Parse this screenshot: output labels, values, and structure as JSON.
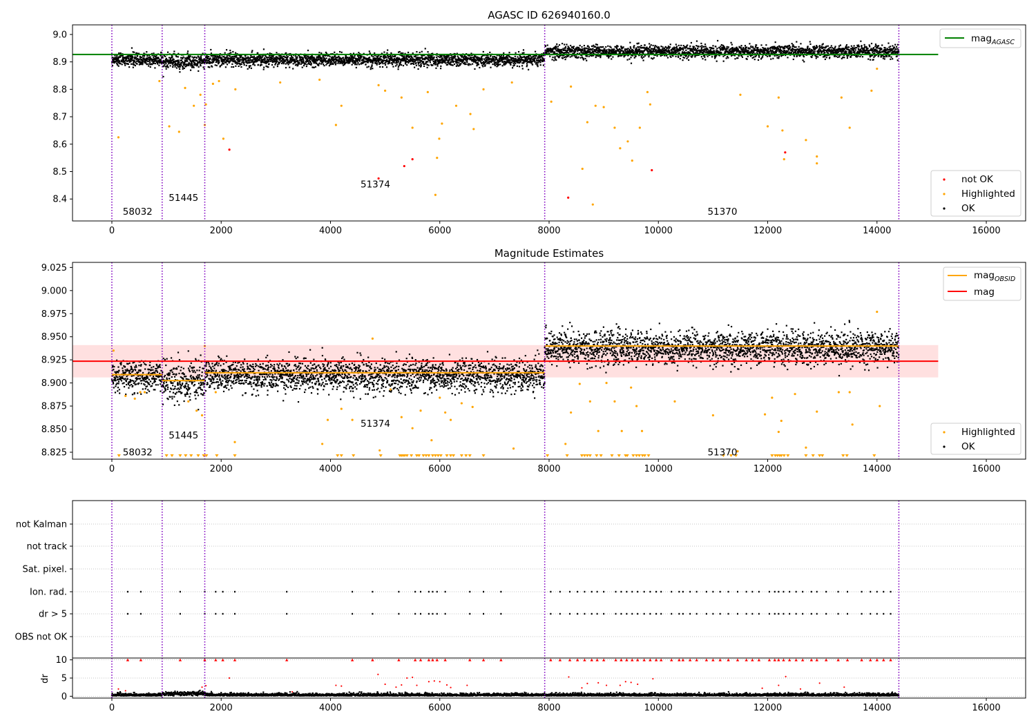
{
  "chart_data": [
    {
      "type": "scatter",
      "title": "AGASC ID 626940160.0",
      "xlabel": "",
      "ylabel": "",
      "xlim": [
        -720,
        16720
      ],
      "ylim": [
        8.32,
        9.035
      ],
      "xticks": [
        0,
        2000,
        4000,
        6000,
        8000,
        10000,
        12000,
        14000,
        16000
      ],
      "yticks": [
        8.4,
        8.5,
        8.6,
        8.7,
        8.8,
        8.9,
        9.0
      ],
      "vlines": [
        0,
        920,
        1700,
        7920,
        14400
      ],
      "obsid_labels": [
        {
          "text": "58032",
          "x": 200,
          "y": 8.355
        },
        {
          "text": "51445",
          "x": 1040,
          "y": 8.405
        },
        {
          "text": "51374",
          "x": 4550,
          "y": 8.455
        },
        {
          "text": "51370",
          "x": 10900,
          "y": 8.355
        }
      ],
      "mag_agasc": {
        "value": 8.927,
        "xrange": [
          -720,
          15120
        ]
      },
      "ok_bands": [
        {
          "x0": 0,
          "x1": 920,
          "center": 8.908,
          "spread": 0.012
        },
        {
          "x0": 920,
          "x1": 1700,
          "center": 8.901,
          "spread": 0.014
        },
        {
          "x0": 1700,
          "x1": 7920,
          "center": 8.908,
          "spread": 0.012
        },
        {
          "x0": 7920,
          "x1": 14400,
          "center": 8.938,
          "spread": 0.012
        }
      ],
      "highlighted_points": [
        [
          120,
          8.625
        ],
        [
          870,
          8.83
        ],
        [
          1050,
          8.665
        ],
        [
          1230,
          8.645
        ],
        [
          1340,
          8.805
        ],
        [
          1500,
          8.74
        ],
        [
          1620,
          8.78
        ],
        [
          1700,
          8.67
        ],
        [
          1720,
          8.745
        ],
        [
          1850,
          8.82
        ],
        [
          1960,
          8.83
        ],
        [
          2040,
          8.62
        ],
        [
          2260,
          8.8
        ],
        [
          3080,
          8.825
        ],
        [
          3800,
          8.835
        ],
        [
          4100,
          8.67
        ],
        [
          4200,
          8.74
        ],
        [
          4880,
          8.815
        ],
        [
          5000,
          8.795
        ],
        [
          5300,
          8.77
        ],
        [
          5500,
          8.66
        ],
        [
          5780,
          8.79
        ],
        [
          5950,
          8.55
        ],
        [
          5990,
          8.62
        ],
        [
          6040,
          8.675
        ],
        [
          6300,
          8.74
        ],
        [
          6560,
          8.71
        ],
        [
          6620,
          8.655
        ],
        [
          6800,
          8.8
        ],
        [
          7320,
          8.825
        ],
        [
          5920,
          8.415
        ],
        [
          8040,
          8.755
        ],
        [
          8400,
          8.81
        ],
        [
          8610,
          8.51
        ],
        [
          8700,
          8.68
        ],
        [
          8850,
          8.74
        ],
        [
          8800,
          8.38
        ],
        [
          9000,
          8.735
        ],
        [
          9200,
          8.66
        ],
        [
          9300,
          8.585
        ],
        [
          9440,
          8.61
        ],
        [
          9520,
          8.54
        ],
        [
          9660,
          8.66
        ],
        [
          9800,
          8.79
        ],
        [
          9850,
          8.745
        ],
        [
          11500,
          8.78
        ],
        [
          12000,
          8.665
        ],
        [
          12200,
          8.77
        ],
        [
          12300,
          8.545
        ],
        [
          12270,
          8.65
        ],
        [
          12700,
          8.615
        ],
        [
          12900,
          8.53
        ],
        [
          12900,
          8.555
        ],
        [
          13350,
          8.77
        ],
        [
          13500,
          8.66
        ],
        [
          13900,
          8.795
        ],
        [
          14000,
          8.875
        ]
      ],
      "not_ok_points": [
        [
          2150,
          8.58
        ],
        [
          4880,
          8.475
        ],
        [
          5350,
          8.52
        ],
        [
          5500,
          8.545
        ],
        [
          8350,
          8.405
        ],
        [
          9880,
          8.505
        ],
        [
          12320,
          8.57
        ]
      ],
      "legend_lines": [
        {
          "label": "mag",
          "subscript": "AGASC",
          "color": "#008000"
        }
      ],
      "legend_points": [
        {
          "label": "not OK",
          "color": "#ff0000"
        },
        {
          "label": "Highlighted",
          "color": "#ffa500"
        },
        {
          "label": "OK",
          "color": "#000000"
        }
      ]
    },
    {
      "type": "scatter",
      "title": "Magnitude Estimates",
      "xlabel": "",
      "ylabel": "",
      "xlim": [
        -720,
        16720
      ],
      "ylim": [
        8.8175,
        9.0305
      ],
      "xticks": [
        0,
        2000,
        4000,
        6000,
        8000,
        10000,
        12000,
        14000,
        16000
      ],
      "yticks": [
        8.825,
        8.85,
        8.875,
        8.9,
        8.925,
        8.95,
        8.975,
        9.0,
        9.025
      ],
      "vlines": [
        0,
        920,
        1700,
        7920,
        14400
      ],
      "obsid_labels": [
        {
          "text": "58032",
          "x": 200,
          "y": 8.8255
        },
        {
          "text": "51445",
          "x": 1040,
          "y": 8.8435
        },
        {
          "text": "51374",
          "x": 4550,
          "y": 8.8565
        },
        {
          "text": "51370",
          "x": 10900,
          "y": 8.8255
        }
      ],
      "mag": {
        "value": 8.9235,
        "band": [
          8.906,
          8.941
        ],
        "xrange": [
          -720,
          15120
        ]
      },
      "mag_obsid": [
        {
          "x0": 0,
          "x1": 920,
          "value": 8.909
        },
        {
          "x0": 920,
          "x1": 1700,
          "value": 8.9025
        },
        {
          "x0": 1700,
          "x1": 7920,
          "value": 8.911
        },
        {
          "x0": 7920,
          "x1": 14400,
          "value": 8.94
        }
      ],
      "ok_bands": [
        {
          "x0": 0,
          "x1": 920,
          "center": 8.908,
          "spread": 0.008
        },
        {
          "x0": 920,
          "x1": 1700,
          "center": 8.901,
          "spread": 0.011
        },
        {
          "x0": 1700,
          "x1": 7920,
          "center": 8.908,
          "spread": 0.009
        },
        {
          "x0": 7920,
          "x1": 14400,
          "center": 8.938,
          "spread": 0.009
        }
      ],
      "highlighted_points": [
        [
          30,
          8.935
        ],
        [
          250,
          8.886
        ],
        [
          420,
          8.883
        ],
        [
          520,
          8.89
        ],
        [
          600,
          8.89
        ],
        [
          1400,
          8.88
        ],
        [
          1550,
          8.87
        ],
        [
          1650,
          8.865
        ],
        [
          1700,
          8.94
        ],
        [
          1900,
          8.89
        ],
        [
          2250,
          8.836
        ],
        [
          3950,
          8.86
        ],
        [
          3850,
          8.834
        ],
        [
          4200,
          8.872
        ],
        [
          4400,
          8.86
        ],
        [
          4770,
          8.948
        ],
        [
          4900,
          8.827
        ],
        [
          5100,
          8.893
        ],
        [
          5300,
          8.863
        ],
        [
          5500,
          8.851
        ],
        [
          5650,
          8.87
        ],
        [
          5850,
          8.838
        ],
        [
          6000,
          8.884
        ],
        [
          6100,
          8.868
        ],
        [
          6200,
          8.86
        ],
        [
          6400,
          8.878
        ],
        [
          6600,
          8.874
        ],
        [
          7350,
          8.829
        ],
        [
          8300,
          8.834
        ],
        [
          8400,
          8.868
        ],
        [
          8560,
          8.899
        ],
        [
          8750,
          8.88
        ],
        [
          8900,
          8.848
        ],
        [
          9050,
          8.9
        ],
        [
          9200,
          8.88
        ],
        [
          9330,
          8.848
        ],
        [
          9500,
          8.895
        ],
        [
          9600,
          8.875
        ],
        [
          9700,
          8.848
        ],
        [
          10300,
          8.88
        ],
        [
          11000,
          8.865
        ],
        [
          11450,
          8.826
        ],
        [
          11950,
          8.866
        ],
        [
          12080,
          8.884
        ],
        [
          12200,
          8.847
        ],
        [
          12250,
          8.859
        ],
        [
          12500,
          8.888
        ],
        [
          12700,
          8.83
        ],
        [
          12900,
          8.869
        ],
        [
          13300,
          8.89
        ],
        [
          13500,
          8.89
        ],
        [
          13550,
          8.855
        ],
        [
          14050,
          8.875
        ],
        [
          14000,
          8.977
        ]
      ],
      "clipped_highlighted_x": [
        130,
        1000,
        1100,
        1250,
        1350,
        1450,
        1580,
        1680,
        1730,
        1920,
        2250,
        4130,
        4200,
        4420,
        4920,
        5270,
        5300,
        5330,
        5360,
        5400,
        5480,
        5580,
        5620,
        5700,
        5750,
        5800,
        5870,
        5920,
        5970,
        6020,
        6130,
        6200,
        6250,
        6400,
        6480,
        6550,
        6800,
        7970,
        8330,
        8600,
        8650,
        8700,
        8750,
        8870,
        8950,
        9150,
        9280,
        9400,
        9430,
        9540,
        9600,
        9650,
        9710,
        9750,
        9820,
        11190,
        11330,
        11420,
        12080,
        12140,
        12180,
        12220,
        12250,
        12300,
        12370,
        12700,
        12830,
        12950,
        13000,
        13380,
        13450,
        13950
      ],
      "legend_lines": [
        {
          "label": "mag",
          "subscript": "OBSID",
          "color": "#ffa500"
        },
        {
          "label": "mag",
          "subscript": "",
          "color": "#ff0000"
        }
      ],
      "legend_points": [
        {
          "label": "Highlighted",
          "color": "#ffa500"
        },
        {
          "label": "OK",
          "color": "#000000"
        }
      ]
    },
    {
      "type": "scatter",
      "title": "",
      "xlabel": "",
      "ylabel": "",
      "xlim": [
        -720,
        16720
      ],
      "categories": [
        "not Kalman",
        "not track",
        "Sat. pixel.",
        "Ion. rad.",
        "dr > 5",
        "OBS not OK"
      ],
      "flag_x": [
        290,
        530,
        1250,
        1700,
        1900,
        2030,
        2250,
        3200,
        4400,
        4770,
        5250,
        5550,
        5650,
        5800,
        5870,
        5950,
        6100,
        6550,
        6800,
        7120,
        8030,
        8200,
        8380,
        8520,
        8650,
        8780,
        8880,
        9000,
        9220,
        9320,
        9420,
        9520,
        9620,
        9740,
        9850,
        9960,
        10050,
        10240,
        10380,
        10450,
        10580,
        10700,
        10880,
        11000,
        11130,
        11280,
        11450,
        11610,
        11720,
        11840,
        12030,
        12130,
        12200,
        12290,
        12400,
        12520,
        12640,
        12800,
        12900,
        13070,
        13290,
        13460,
        13720,
        13880,
        14000,
        14120,
        14250
      ],
      "vlines": [
        0,
        920,
        1700,
        7920,
        14400
      ]
    },
    {
      "type": "scatter",
      "title": "",
      "xlabel": "",
      "ylabel": "dr",
      "xlim": [
        -720,
        16720
      ],
      "ylim": [
        -0.5,
        10.5
      ],
      "yticks": [
        0,
        5,
        10
      ],
      "ytick_labels": [
        "0",
        "5",
        "10"
      ],
      "xticks": [
        0,
        2000,
        4000,
        6000,
        8000,
        10000,
        12000,
        14000,
        16000
      ],
      "vlines": [
        0,
        920,
        1700,
        7920,
        14400
      ],
      "outlier_points": [
        [
          120,
          2.0
        ],
        [
          250,
          1.5
        ],
        [
          1650,
          2.5
        ],
        [
          1720,
          2.9
        ],
        [
          2150,
          5.0
        ],
        [
          3300,
          1.2
        ],
        [
          4100,
          3.0
        ],
        [
          4200,
          2.8
        ],
        [
          4870,
          6.0
        ],
        [
          5000,
          3.3
        ],
        [
          5200,
          2.5
        ],
        [
          5300,
          3.1
        ],
        [
          5400,
          5.0
        ],
        [
          5500,
          5.2
        ],
        [
          5580,
          3.0
        ],
        [
          5800,
          4.0
        ],
        [
          5900,
          4.2
        ],
        [
          6000,
          4.0
        ],
        [
          6130,
          3.1
        ],
        [
          6200,
          2.4
        ],
        [
          6500,
          3.0
        ],
        [
          8360,
          5.3
        ],
        [
          8600,
          2.3
        ],
        [
          8700,
          3.5
        ],
        [
          8900,
          3.7
        ],
        [
          9050,
          3.0
        ],
        [
          9300,
          3.0
        ],
        [
          9400,
          4.0
        ],
        [
          9500,
          3.8
        ],
        [
          9620,
          3.3
        ],
        [
          9900,
          4.8
        ],
        [
          11900,
          2.2
        ],
        [
          12200,
          3.0
        ],
        [
          12330,
          5.4
        ],
        [
          12600,
          2.0
        ],
        [
          12950,
          3.6
        ],
        [
          13400,
          2.5
        ]
      ],
      "clipped_x": [
        290,
        530,
        1250,
        1700,
        1900,
        2030,
        2250,
        3200,
        4400,
        4770,
        5250,
        5550,
        5650,
        5800,
        5870,
        5950,
        6100,
        6550,
        6800,
        7120,
        8030,
        8200,
        8380,
        8520,
        8650,
        8780,
        8880,
        9000,
        9220,
        9320,
        9420,
        9520,
        9620,
        9740,
        9850,
        9960,
        10050,
        10240,
        10380,
        10450,
        10580,
        10700,
        10880,
        11000,
        11130,
        11280,
        11450,
        11610,
        11720,
        11840,
        12030,
        12130,
        12200,
        12290,
        12400,
        12520,
        12640,
        12800,
        12900,
        13070,
        13290,
        13460,
        13720,
        13880,
        14000,
        14120,
        14250
      ]
    }
  ]
}
